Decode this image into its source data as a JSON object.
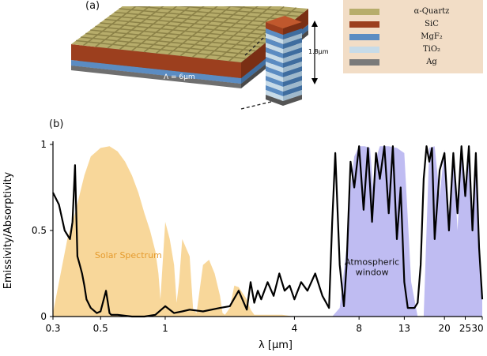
{
  "figure": {
    "panel_a_label": "(a)",
    "panel_b_label": "(b)",
    "period_label": "Λ = 6μm",
    "stack_height_label": "1.8μm"
  },
  "legend": [
    {
      "name": "α-Quartz",
      "color": "#b7ad6b"
    },
    {
      "name": "SiC",
      "color": "#9c3f1e"
    },
    {
      "name": "MgF₂",
      "color": "#5b8cc2"
    },
    {
      "name": "TiO₂",
      "color": "#c7dbe8"
    },
    {
      "name": "Ag",
      "color": "#7a7a7a"
    }
  ],
  "chart_data": {
    "type": "line",
    "title": "",
    "xlabel": "λ [μm]",
    "ylabel": "Emissivity/Absorptivity",
    "xscale": "log",
    "xlim": [
      0.3,
      30
    ],
    "ylim": [
      0,
      1
    ],
    "xticks": [
      0.3,
      0.5,
      1,
      4,
      8,
      13,
      20,
      25,
      30
    ],
    "xtick_labels": [
      "0.3",
      "0.5",
      "1",
      "4",
      "8",
      "13",
      "20",
      "25",
      "30"
    ],
    "yticks": [
      0,
      0.5,
      1
    ],
    "ytick_labels": [
      "0",
      "0.5",
      "1"
    ],
    "annotations": [
      "Solar Spectrum",
      "Atmospheric window"
    ],
    "series": [
      {
        "name": "Solar Spectrum",
        "kind": "area",
        "color": "#f6c978",
        "x": [
          0.3,
          0.32,
          0.35,
          0.38,
          0.42,
          0.45,
          0.5,
          0.55,
          0.6,
          0.65,
          0.7,
          0.75,
          0.8,
          0.85,
          0.9,
          0.93,
          0.95,
          1.0,
          1.05,
          1.1,
          1.13,
          1.16,
          1.2,
          1.3,
          1.35,
          1.4,
          1.5,
          1.6,
          1.7,
          1.8,
          1.85,
          1.9,
          2.0,
          2.1,
          2.2,
          2.4,
          2.5,
          2.6,
          3.0,
          3.5,
          4.0
        ],
        "y": [
          0.02,
          0.2,
          0.45,
          0.6,
          0.82,
          0.93,
          0.98,
          0.99,
          0.96,
          0.9,
          0.82,
          0.72,
          0.6,
          0.5,
          0.38,
          0.25,
          0.1,
          0.55,
          0.45,
          0.3,
          0.08,
          0.2,
          0.45,
          0.35,
          0.04,
          0.02,
          0.3,
          0.33,
          0.25,
          0.12,
          0.02,
          0.01,
          0.05,
          0.18,
          0.17,
          0.1,
          0.04,
          0.01,
          0.01,
          0.01,
          0.0
        ]
      },
      {
        "name": "Atmospheric window",
        "kind": "area",
        "color": "#a9a6ee",
        "x": [
          6.0,
          6.5,
          7.0,
          7.3,
          7.6,
          8.0,
          8.5,
          9.0,
          9.3,
          9.6,
          10.0,
          11.0,
          12.0,
          13.0,
          14.0,
          15.0,
          16.0,
          16.5,
          17.0,
          18.0,
          19.0,
          20.0,
          21.0,
          22.0,
          23.0,
          24.0,
          25.0,
          26.0,
          27.0,
          28.0,
          29.0,
          30.0
        ],
        "y": [
          0.0,
          0.05,
          0.4,
          0.75,
          0.93,
          0.99,
          0.99,
          0.98,
          0.75,
          0.92,
          0.99,
          0.99,
          0.98,
          0.95,
          0.2,
          0.0,
          0.0,
          0.5,
          0.98,
          0.99,
          0.7,
          0.97,
          0.6,
          0.95,
          0.5,
          0.95,
          0.7,
          0.95,
          0.6,
          0.9,
          0.5,
          0.1
        ]
      },
      {
        "name": "",
        "kind": "line",
        "color": "#000000",
        "x": [
          0.3,
          0.32,
          0.34,
          0.36,
          0.37,
          0.38,
          0.39,
          0.4,
          0.41,
          0.42,
          0.43,
          0.45,
          0.48,
          0.5,
          0.53,
          0.55,
          0.56,
          0.57,
          0.6,
          0.7,
          0.8,
          0.9,
          1.0,
          1.1,
          1.2,
          1.3,
          1.5,
          1.8,
          2.0,
          2.2,
          2.4,
          2.5,
          2.6,
          2.7,
          2.8,
          3.0,
          3.2,
          3.4,
          3.6,
          3.8,
          4.0,
          4.3,
          4.6,
          5.0,
          5.4,
          5.8,
          6.0,
          6.2,
          6.5,
          6.8,
          7.0,
          7.3,
          7.6,
          8.0,
          8.4,
          8.8,
          9.2,
          9.6,
          10.0,
          10.5,
          11.0,
          11.5,
          12.0,
          12.5,
          13.0,
          13.5,
          14.0,
          14.5,
          15.0,
          15.5,
          16.0,
          16.5,
          17.0,
          17.5,
          18.0,
          19.0,
          20.0,
          21.0,
          22.0,
          23.0,
          24.0,
          25.0,
          26.0,
          27.0,
          28.0,
          29.0,
          30.0
        ],
        "y": [
          0.72,
          0.65,
          0.5,
          0.45,
          0.55,
          0.88,
          0.35,
          0.3,
          0.25,
          0.18,
          0.1,
          0.05,
          0.02,
          0.03,
          0.15,
          0.02,
          0.01,
          0.01,
          0.01,
          0.0,
          0.0,
          0.01,
          0.06,
          0.02,
          0.03,
          0.04,
          0.03,
          0.05,
          0.06,
          0.15,
          0.04,
          0.2,
          0.08,
          0.15,
          0.1,
          0.2,
          0.12,
          0.25,
          0.15,
          0.18,
          0.1,
          0.2,
          0.15,
          0.25,
          0.12,
          0.05,
          0.55,
          0.95,
          0.3,
          0.06,
          0.3,
          0.9,
          0.75,
          0.99,
          0.62,
          0.98,
          0.55,
          0.95,
          0.8,
          0.99,
          0.6,
          0.99,
          0.45,
          0.75,
          0.2,
          0.05,
          0.05,
          0.05,
          0.08,
          0.3,
          0.8,
          0.99,
          0.9,
          0.98,
          0.45,
          0.85,
          0.95,
          0.5,
          0.95,
          0.6,
          0.99,
          0.7,
          0.99,
          0.5,
          0.95,
          0.4,
          0.1
        ]
      }
    ]
  }
}
